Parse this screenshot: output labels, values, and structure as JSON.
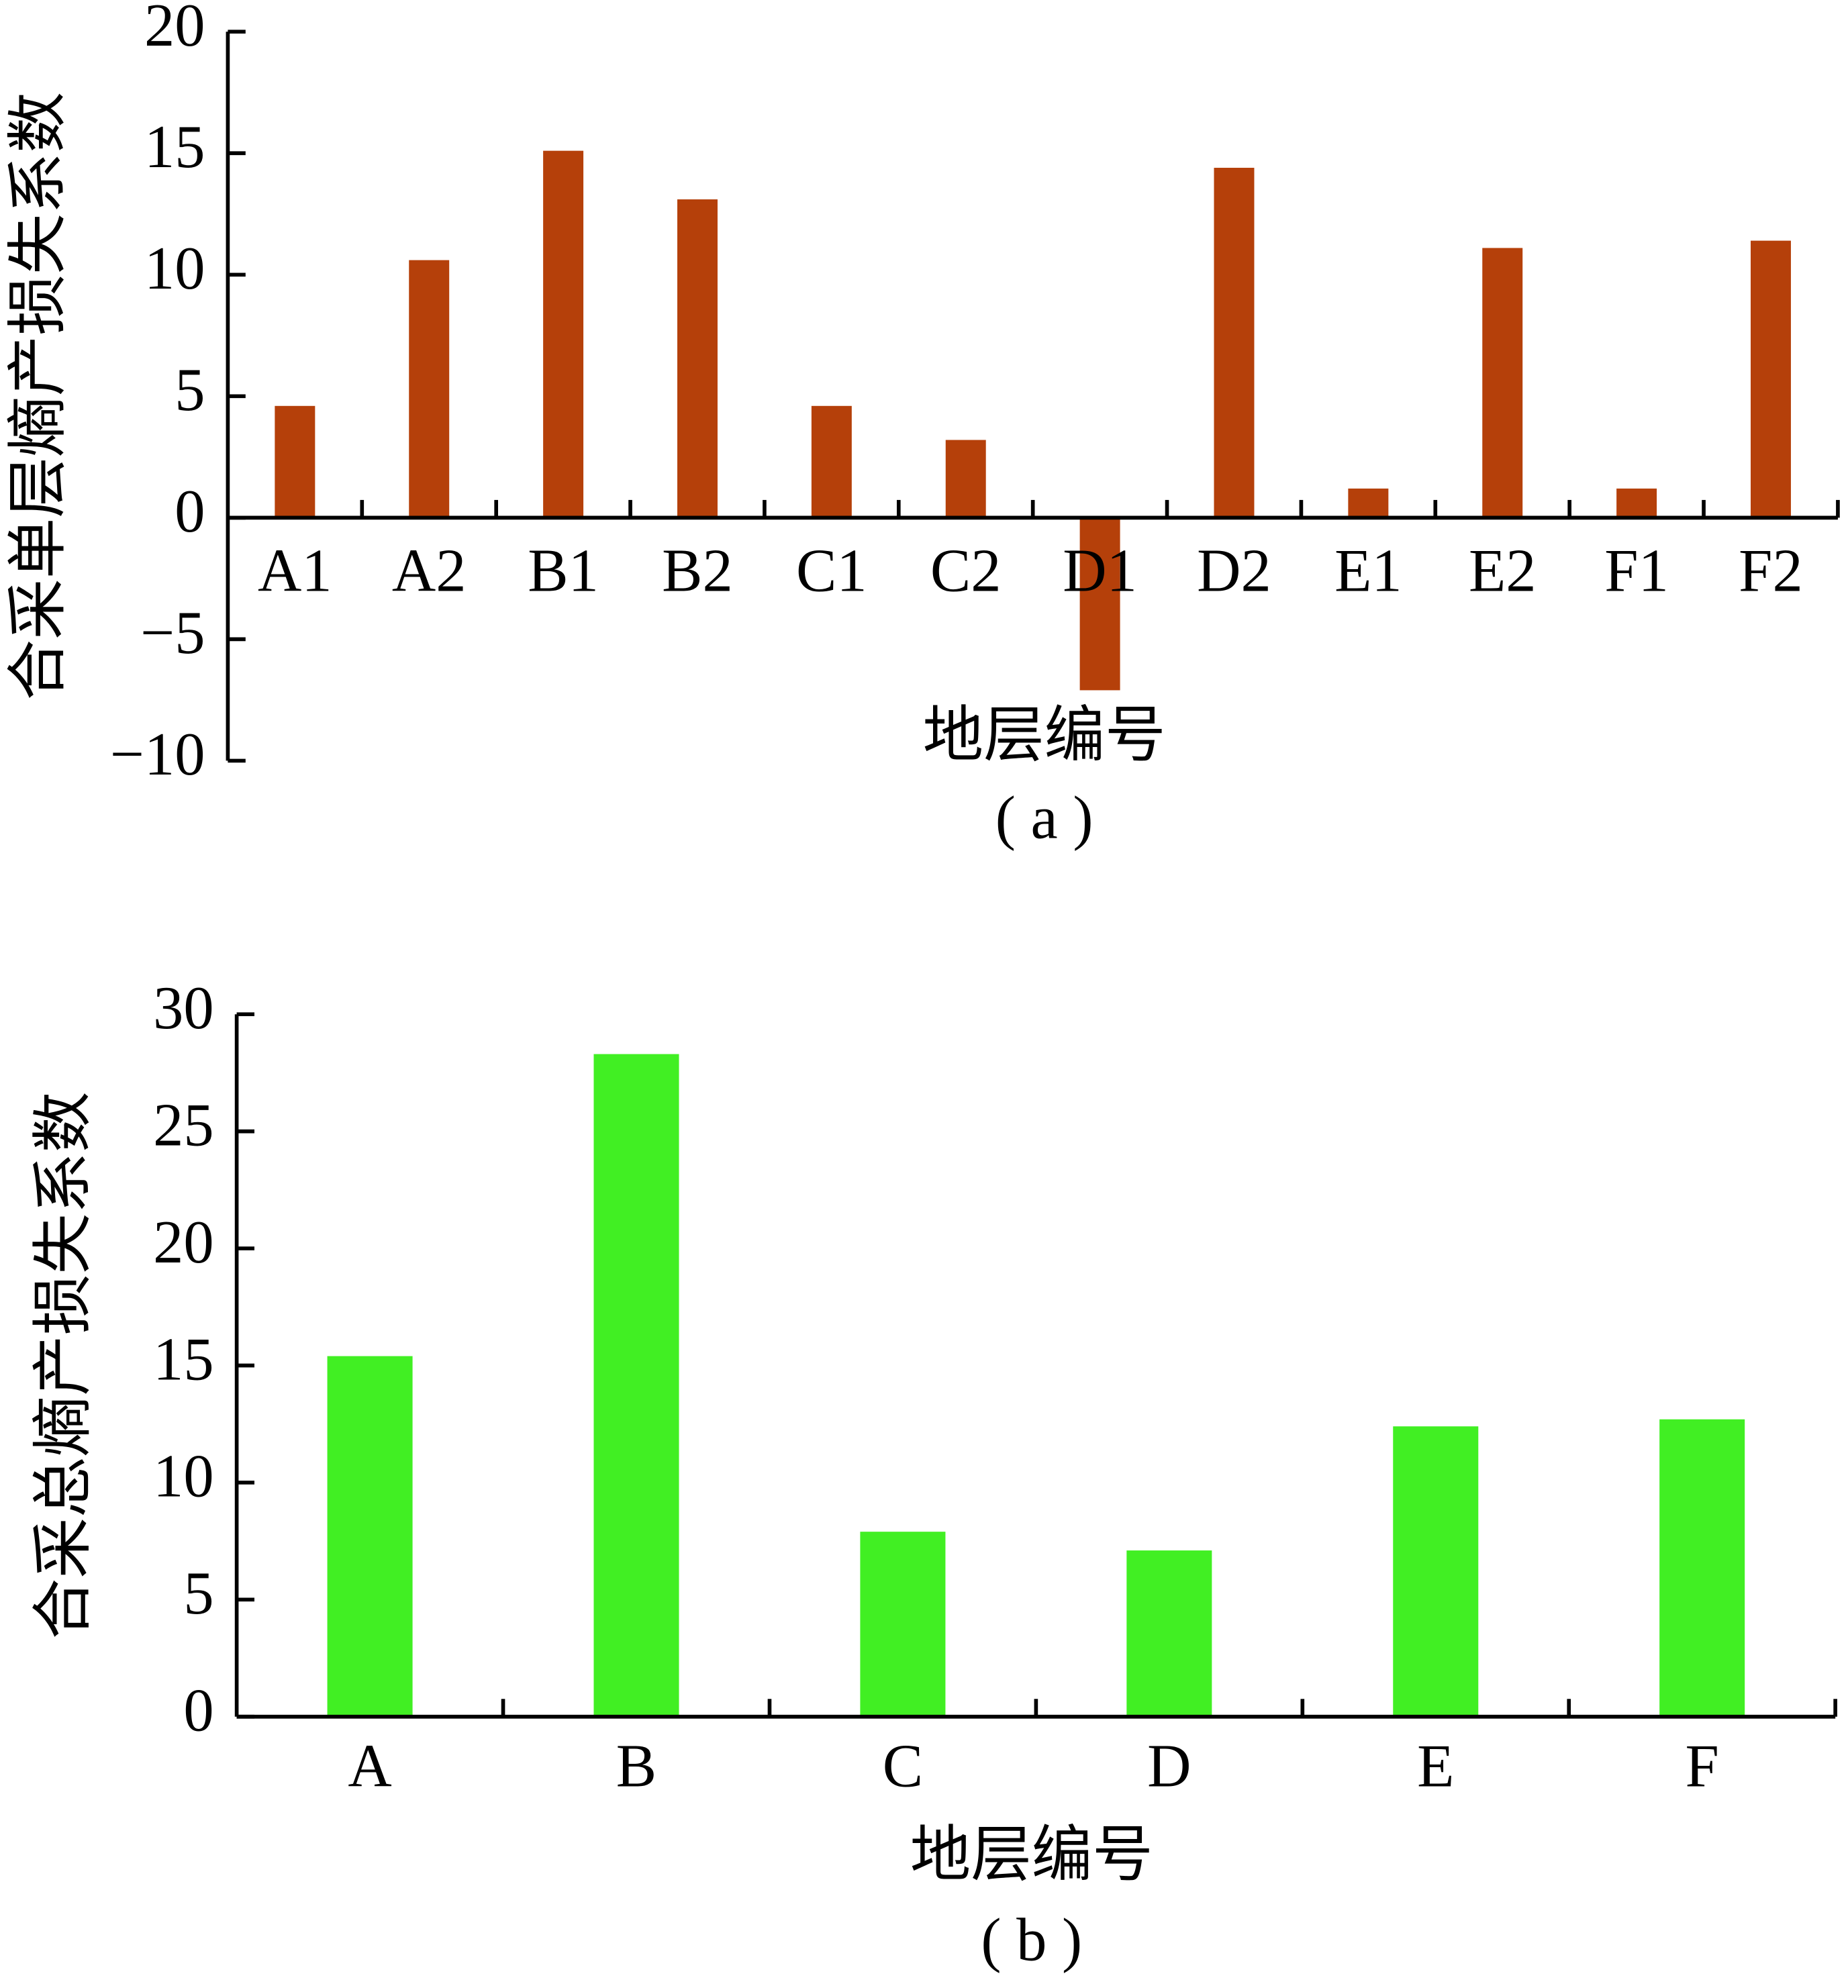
{
  "chart_data": [
    {
      "type": "bar",
      "x_label": "地层编号",
      "y_label": "合采单层熵产损失系数",
      "caption": "( a )",
      "categories": [
        "A1",
        "A2",
        "B1",
        "B2",
        "C1",
        "C2",
        "D1",
        "D2",
        "E1",
        "E2",
        "F1",
        "F2"
      ],
      "values": [
        4.6,
        10.6,
        15.1,
        13.1,
        4.6,
        3.2,
        -7.1,
        14.4,
        1.2,
        11.1,
        1.2,
        11.4
      ],
      "color": "#b5400a",
      "ylim": [
        -10,
        20
      ],
      "yticks": [
        {
          "value": -10,
          "label": "−10"
        },
        {
          "value": -5,
          "label": "−5"
        },
        0,
        5,
        10,
        15,
        20
      ]
    },
    {
      "type": "bar",
      "x_label": "地层编号",
      "y_label": "合采总熵产损失系数",
      "caption": "( b )",
      "categories": [
        "A",
        "B",
        "C",
        "D",
        "E",
        "F"
      ],
      "values": [
        15.4,
        28.3,
        7.9,
        7.1,
        12.4,
        12.7
      ],
      "color": "#41ef23",
      "ylim": [
        0,
        30
      ],
      "yticks": [
        0,
        5,
        10,
        15,
        20,
        25,
        30
      ]
    }
  ]
}
